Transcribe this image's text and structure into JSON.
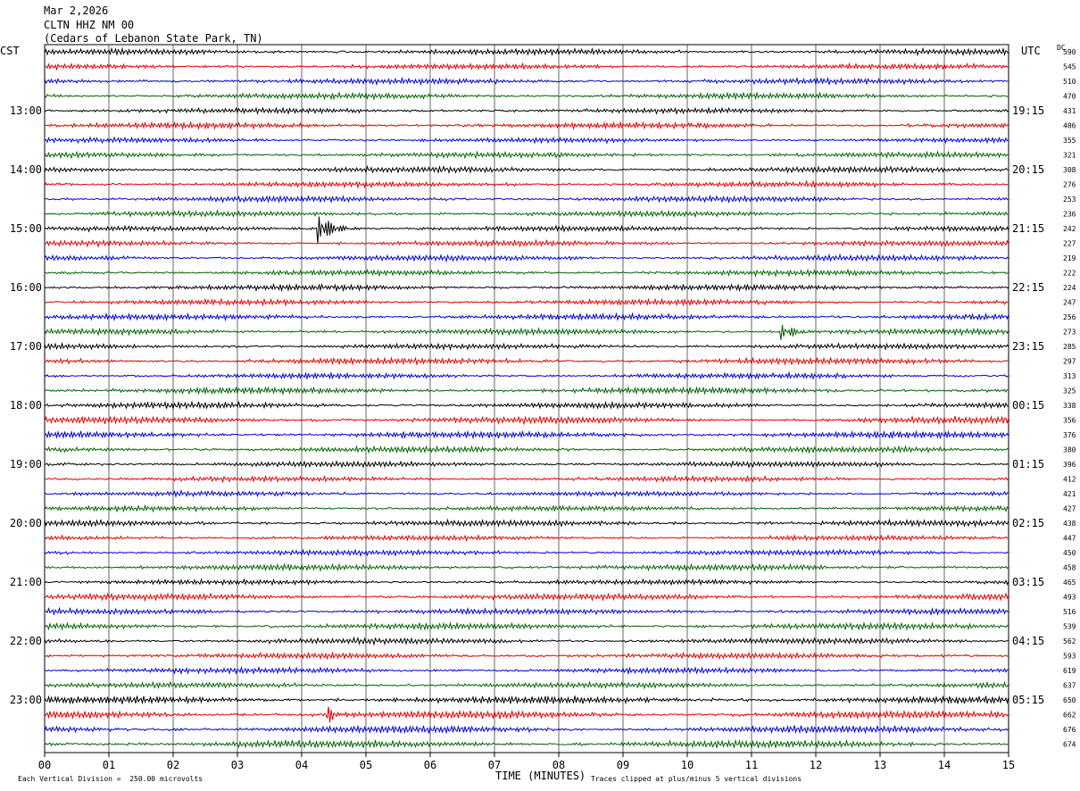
{
  "header": {
    "date": "Mar 2,2026",
    "station": "CLTN HHZ NM 00",
    "location": "(Cedars of Lebanon State Park, TN)"
  },
  "left_zone": "CST",
  "right_zone": "UTC",
  "dc_label": "DC",
  "footer": {
    "scale_note": "Each Vertical Division =  250.00 microvolts",
    "xlabel": "TIME (MINUTES)",
    "clip_note": "Traces clipped at plus/minus 5 vertical divisions"
  },
  "chart_data": {
    "type": "line",
    "title": "CLTN HHZ NM 00",
    "xlabel": "TIME (MINUTES)",
    "xlim": [
      0,
      15
    ],
    "x_ticks": [
      "00",
      "01",
      "02",
      "03",
      "04",
      "05",
      "06",
      "07",
      "08",
      "09",
      "10",
      "11",
      "12",
      "13",
      "14",
      "15"
    ],
    "trace_count": 48,
    "trace_colors": [
      "#000000",
      "#e00000",
      "#0000d0",
      "#006400"
    ],
    "hour_labels_cst": [
      "13:00",
      "14:00",
      "15:00",
      "16:00",
      "17:00",
      "18:00",
      "19:00",
      "20:00",
      "21:00",
      "22:00",
      "23:00"
    ],
    "hour_labels_utc": [
      "19:15",
      "20:15",
      "21:15",
      "22:15",
      "23:15",
      "00:15",
      "01:15",
      "02:15",
      "03:15",
      "04:15",
      "05:15"
    ],
    "dc_offsets": [
      "590",
      "545",
      "510",
      "470",
      "431",
      "406",
      "355",
      "321",
      "308",
      "276",
      "253",
      "236",
      "242",
      "227",
      "219",
      "222",
      "224",
      "247",
      "256",
      "273",
      "285",
      "297",
      "313",
      "325",
      "338",
      "356",
      "376",
      "380",
      "396",
      "412",
      "421",
      "427",
      "438",
      "447",
      "450",
      "458",
      "465",
      "493",
      "516",
      "539",
      "562",
      "593",
      "619",
      "637",
      "650",
      "662",
      "676",
      "674"
    ],
    "events": [
      {
        "trace": 12,
        "minute": 4.27,
        "label": "large spike"
      },
      {
        "trace": 19,
        "minute": 11.47,
        "label": "spike"
      },
      {
        "trace": 45,
        "minute": 4.4,
        "label": "noise burst"
      }
    ],
    "grid": true
  }
}
